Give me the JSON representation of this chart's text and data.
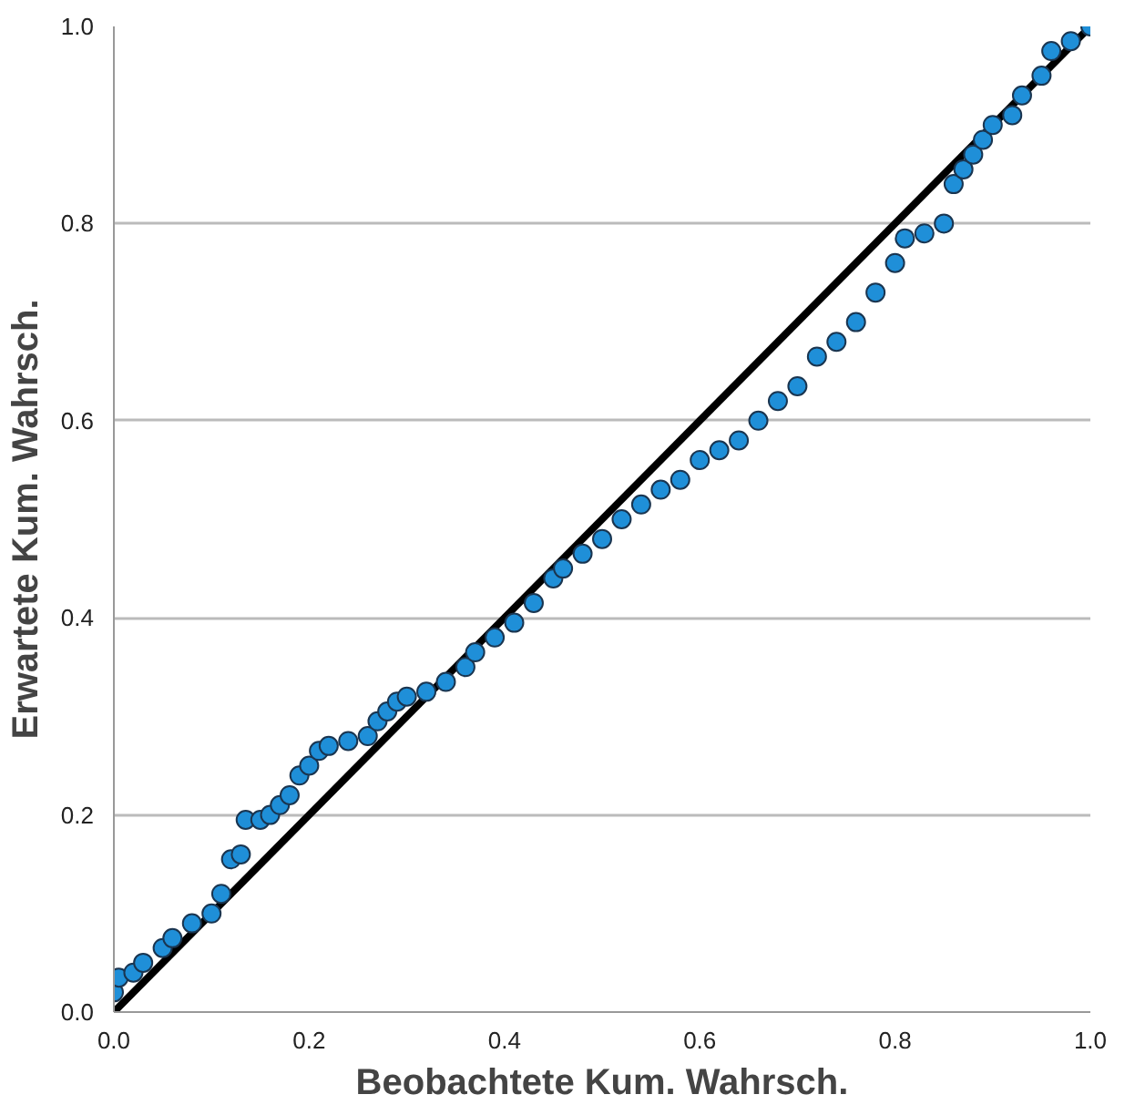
{
  "chart_data": {
    "type": "scatter",
    "xlabel": "Beobachtete Kum. Wahrsch.",
    "ylabel": "Erwartete Kum. Wahrsch.",
    "xlim": [
      0,
      1
    ],
    "ylim": [
      0,
      1
    ],
    "xticks": [
      {
        "value": 0,
        "label": "0.0"
      },
      {
        "value": 0.2,
        "label": "0.2"
      },
      {
        "value": 0.4,
        "label": "0.4"
      },
      {
        "value": 0.6,
        "label": "0.6"
      },
      {
        "value": 0.8,
        "label": "0.8"
      },
      {
        "value": 1,
        "label": "1.0"
      }
    ],
    "yticks": [
      {
        "value": 0,
        "label": "0.0"
      },
      {
        "value": 0.2,
        "label": "0.2"
      },
      {
        "value": 0.4,
        "label": "0.4"
      },
      {
        "value": 0.6,
        "label": "0.6"
      },
      {
        "value": 0.8,
        "label": "0.8"
      },
      {
        "value": 1,
        "label": "1.0"
      }
    ],
    "grid": "y",
    "marker": "circle",
    "series": [
      {
        "type": "line",
        "marker": "none",
        "color": "#000000",
        "x": [
          0,
          1
        ],
        "values": [
          0,
          1
        ]
      },
      {
        "color": "#1f8fd8",
        "x": [
          0.0,
          0.005,
          0.02,
          0.03,
          0.05,
          0.06,
          0.08,
          0.1,
          0.11,
          0.12,
          0.13,
          0.135,
          0.15,
          0.16,
          0.17,
          0.18,
          0.19,
          0.2,
          0.21,
          0.22,
          0.24,
          0.26,
          0.27,
          0.28,
          0.29,
          0.3,
          0.32,
          0.34,
          0.36,
          0.37,
          0.39,
          0.41,
          0.43,
          0.45,
          0.46,
          0.48,
          0.5,
          0.52,
          0.54,
          0.56,
          0.58,
          0.6,
          0.62,
          0.64,
          0.66,
          0.68,
          0.7,
          0.72,
          0.74,
          0.76,
          0.78,
          0.8,
          0.81,
          0.83,
          0.85,
          0.86,
          0.87,
          0.88,
          0.89,
          0.9,
          0.92,
          0.93,
          0.95,
          0.96,
          0.98,
          1.0
        ],
        "values": [
          0.02,
          0.035,
          0.04,
          0.05,
          0.065,
          0.075,
          0.09,
          0.1,
          0.12,
          0.155,
          0.16,
          0.195,
          0.195,
          0.2,
          0.21,
          0.22,
          0.24,
          0.25,
          0.265,
          0.27,
          0.275,
          0.28,
          0.295,
          0.305,
          0.315,
          0.32,
          0.325,
          0.335,
          0.35,
          0.365,
          0.38,
          0.395,
          0.415,
          0.44,
          0.45,
          0.465,
          0.48,
          0.5,
          0.515,
          0.53,
          0.54,
          0.56,
          0.57,
          0.58,
          0.6,
          0.62,
          0.635,
          0.665,
          0.68,
          0.7,
          0.73,
          0.76,
          0.785,
          0.79,
          0.8,
          0.84,
          0.855,
          0.87,
          0.885,
          0.9,
          0.91,
          0.93,
          0.95,
          0.975,
          0.985,
          1.0
        ]
      }
    ]
  }
}
